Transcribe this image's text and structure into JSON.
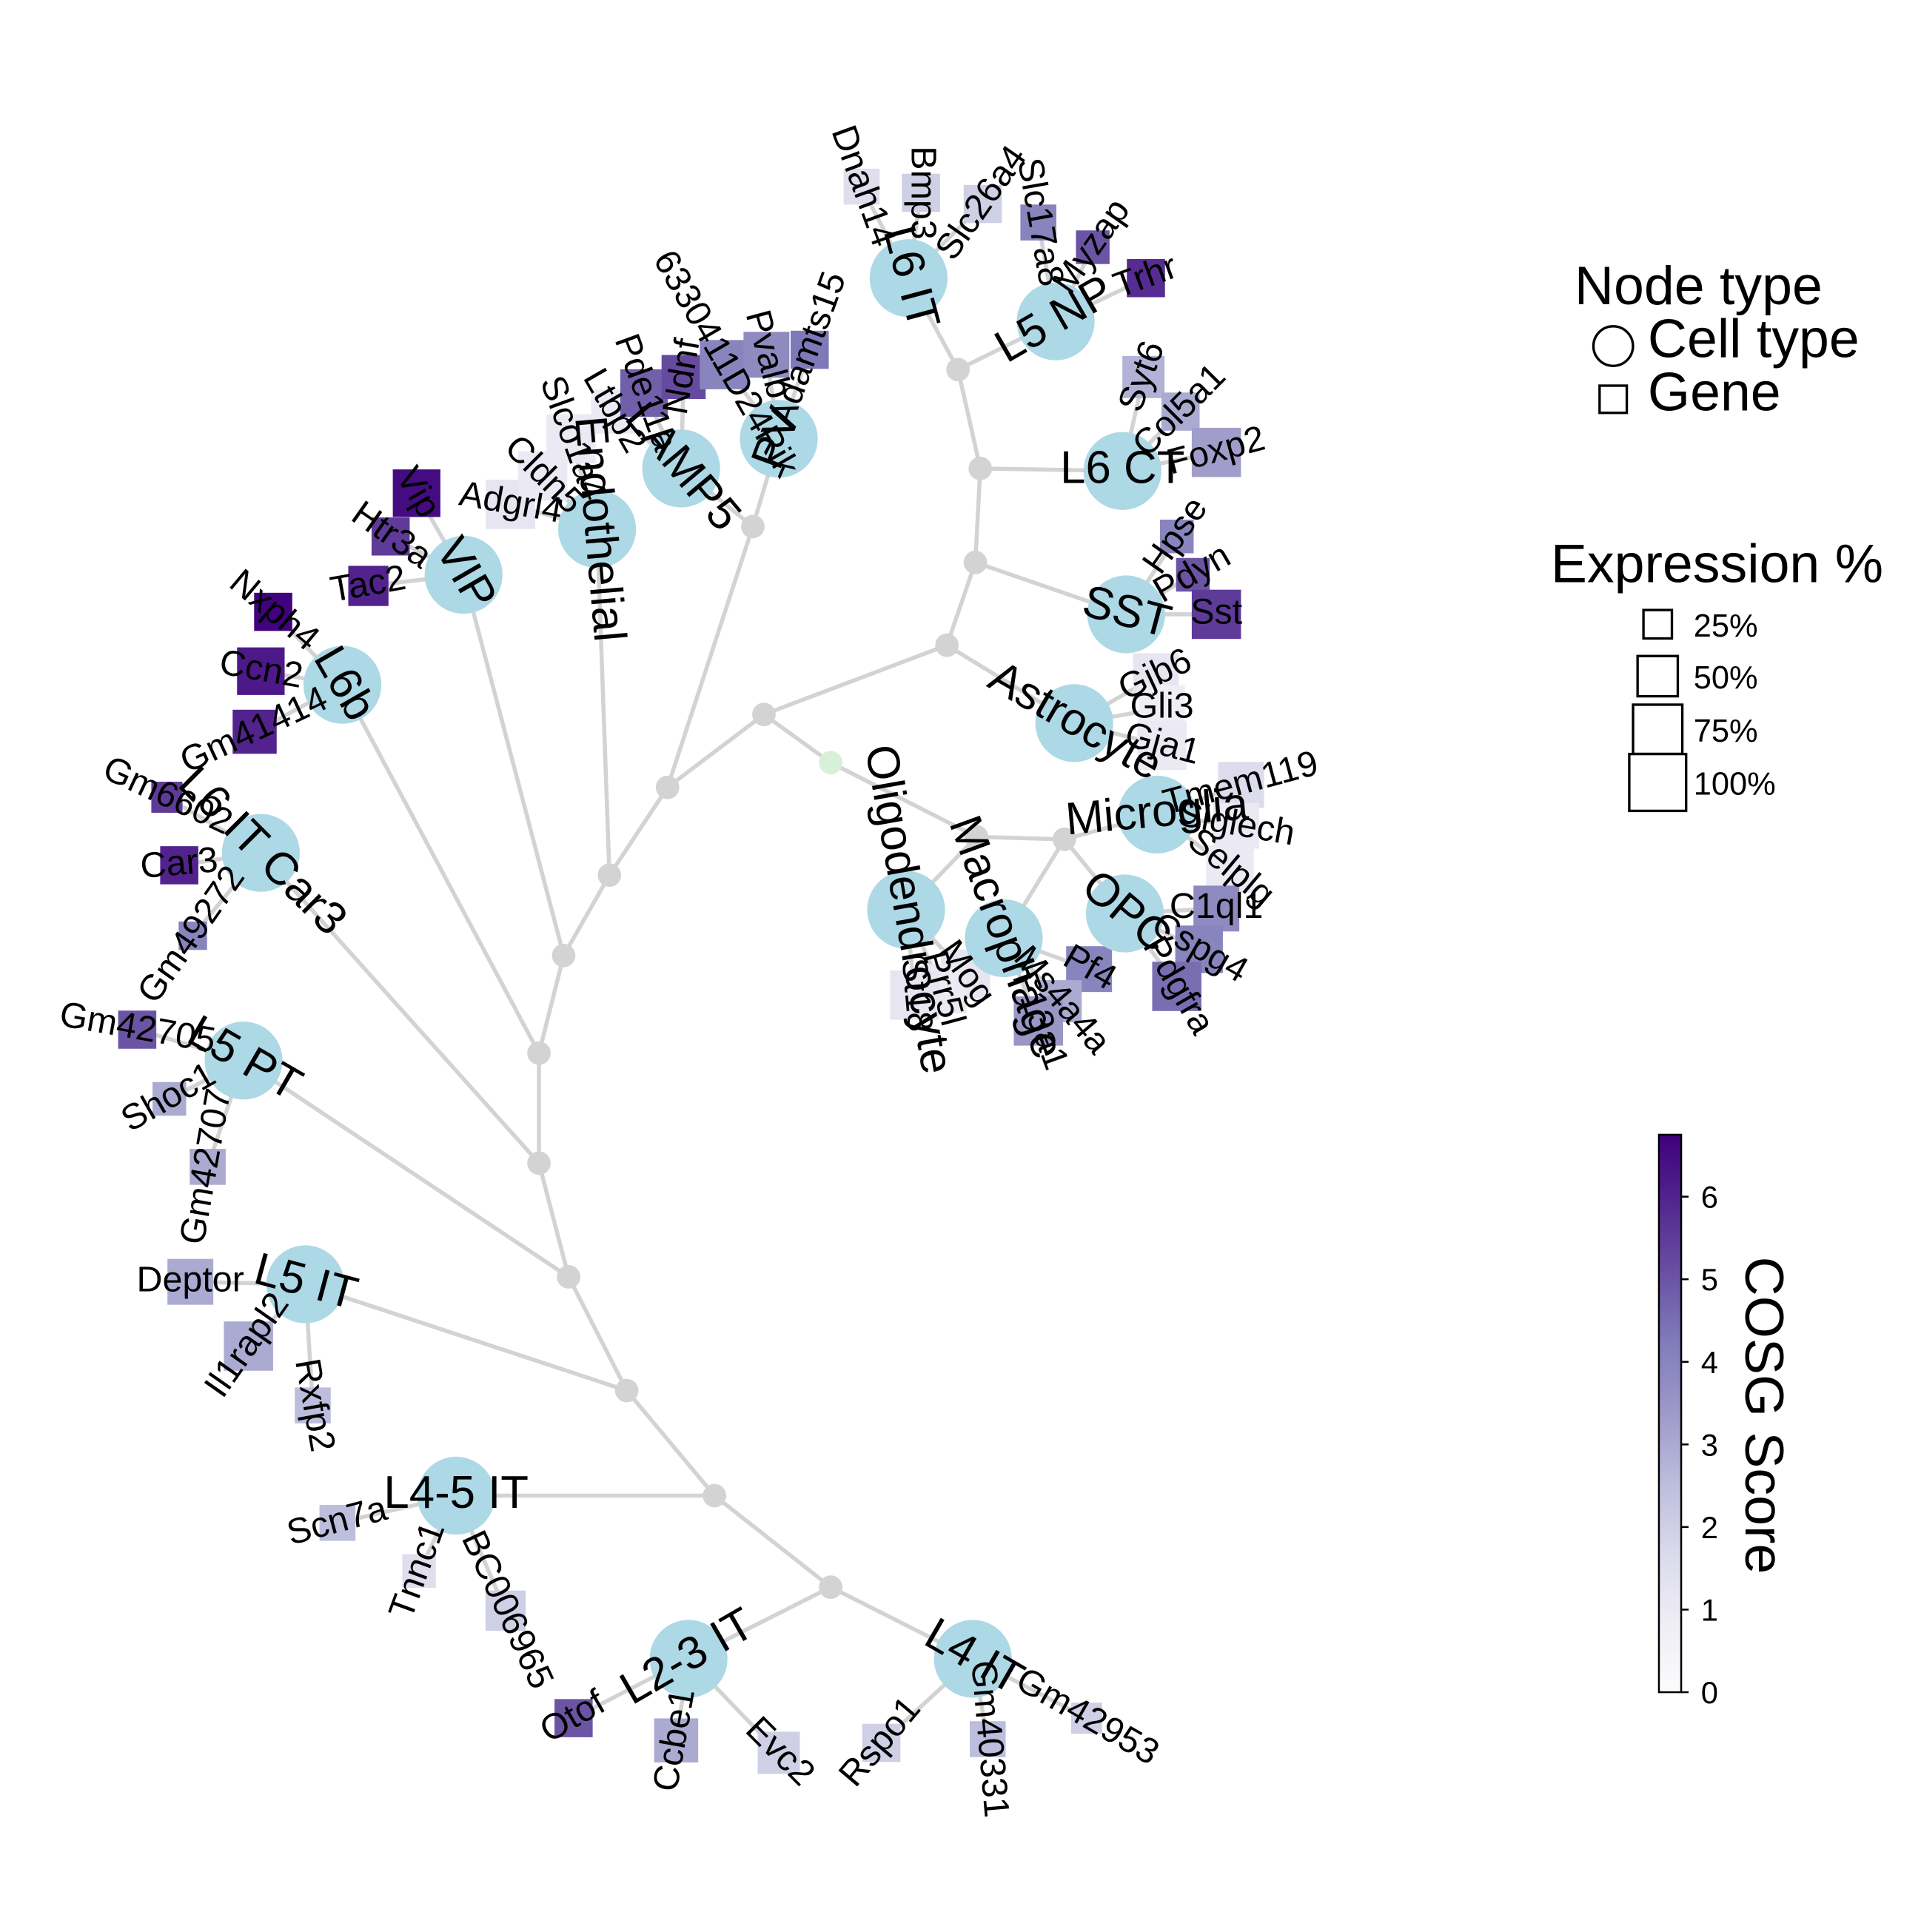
{
  "legend": {
    "node_type_title": "Node type",
    "node_types": [
      {
        "shape": "circle",
        "label": "Cell type"
      },
      {
        "shape": "square",
        "label": "Gene"
      }
    ],
    "expression_title": "Expression %",
    "expression_levels": [
      {
        "label": "25%",
        "value": 0.25
      },
      {
        "label": "50%",
        "value": 0.5
      },
      {
        "label": "75%",
        "value": 0.75
      },
      {
        "label": "100%",
        "value": 1.0
      }
    ]
  },
  "colorbar": {
    "label": "COSG Score",
    "min": 0,
    "max": 6.75,
    "ticks": [
      "0",
      "1",
      "2",
      "3",
      "4",
      "5",
      "6"
    ],
    "colors": [
      "#fcfbfd",
      "#efedf5",
      "#dadaeb",
      "#bcbddc",
      "#9e9ac8",
      "#807dba",
      "#6a51a3",
      "#54278f",
      "#3f007d"
    ]
  },
  "colors": {
    "cell_node": "#add8e6",
    "branch_node": "#d3d3d3",
    "root_node": "#d8f0d8",
    "edge": "#d3d3d3"
  },
  "cell_types": [
    {
      "name": "L6 IT",
      "genes": [
        {
          "name": "Dnah14",
          "score": 1.5,
          "expr": 0.4
        },
        {
          "name": "Bmp3",
          "score": 2.0,
          "expr": 0.45
        },
        {
          "name": "Slc26a4",
          "score": 2.0,
          "expr": 0.45
        }
      ]
    },
    {
      "name": "L5 NP",
      "genes": [
        {
          "name": "Slc17a8",
          "score": 4.0,
          "expr": 0.4
        },
        {
          "name": "Myzap",
          "score": 5.0,
          "expr": 0.35
        },
        {
          "name": "Trhr",
          "score": 5.8,
          "expr": 0.45
        }
      ]
    },
    {
      "name": "L6 CT",
      "genes": [
        {
          "name": "Syt6",
          "score": 2.8,
          "expr": 0.55
        },
        {
          "name": "Col5a1",
          "score": 3.0,
          "expr": 0.45
        },
        {
          "name": "Foxp2",
          "score": 3.3,
          "expr": 0.75
        }
      ]
    },
    {
      "name": "SST",
      "genes": [
        {
          "name": "Hpse",
          "score": 4.0,
          "expr": 0.35
        },
        {
          "name": "Pdyn",
          "score": 5.0,
          "expr": 0.35
        },
        {
          "name": "Sst",
          "score": 5.5,
          "expr": 0.75
        }
      ]
    },
    {
      "name": "Astrocyte",
      "genes": [
        {
          "name": "Gjb6",
          "score": 1.2,
          "expr": 0.65
        },
        {
          "name": "Gli3",
          "score": 0.8,
          "expr": 0.65
        },
        {
          "name": "Gja1",
          "score": 1.0,
          "expr": 0.75
        }
      ]
    },
    {
      "name": "Microglia",
      "genes": [
        {
          "name": "Tmem119",
          "score": 1.6,
          "expr": 0.65
        },
        {
          "name": "Siglech",
          "score": 1.0,
          "expr": 0.65
        },
        {
          "name": "Selplg",
          "score": 1.0,
          "expr": 0.7
        }
      ]
    },
    {
      "name": "OPC",
      "genes": [
        {
          "name": "C1ql1",
          "score": 3.8,
          "expr": 0.65
        },
        {
          "name": "Cspg4",
          "score": 4.0,
          "expr": 0.7
        },
        {
          "name": "Pdgfra",
          "score": 4.5,
          "expr": 0.75
        }
      ]
    },
    {
      "name": "Macrophage",
      "genes": [
        {
          "name": "Pf4",
          "score": 4.0,
          "expr": 0.65
        },
        {
          "name": "Ms4a4a",
          "score": 3.0,
          "expr": 0.55
        },
        {
          "name": "F13a1",
          "score": 3.5,
          "expr": 0.75
        }
      ]
    },
    {
      "name": "Oligodendrocyte",
      "genes": [
        {
          "name": "Mog",
          "score": 1.2,
          "expr": 0.75
        },
        {
          "name": "Prr5l",
          "score": 1.0,
          "expr": 0.75
        },
        {
          "name": "St18",
          "score": 1.2,
          "expr": 0.75
        }
      ]
    },
    {
      "name": "L4 IT",
      "genes": [
        {
          "name": "Gm42953",
          "score": 2.0,
          "expr": 0.3
        },
        {
          "name": "Gm40331",
          "score": 2.5,
          "expr": 0.4
        },
        {
          "name": "Rspo1",
          "score": 2.0,
          "expr": 0.45
        }
      ]
    },
    {
      "name": "L2-3 IT",
      "genes": [
        {
          "name": "Evc2",
          "score": 2.0,
          "expr": 0.55
        },
        {
          "name": "Ccbe1",
          "score": 3.0,
          "expr": 0.6
        },
        {
          "name": "Otof",
          "score": 5.0,
          "expr": 0.45
        }
      ]
    },
    {
      "name": "L4-5 IT",
      "genes": [
        {
          "name": "BC006965",
          "score": 2.0,
          "expr": 0.5
        },
        {
          "name": "Tnnc1",
          "score": 1.5,
          "expr": 0.35
        },
        {
          "name": "Scn7a",
          "score": 2.5,
          "expr": 0.4
        }
      ]
    },
    {
      "name": "L5 IT",
      "genes": [
        {
          "name": "Rxfp2",
          "score": 2.5,
          "expr": 0.4
        },
        {
          "name": "Il1rapl2",
          "score": 3.0,
          "expr": 0.75
        },
        {
          "name": "Deptor",
          "score": 3.0,
          "expr": 0.65
        }
      ]
    },
    {
      "name": "L5 PT",
      "genes": [
        {
          "name": "Gm42707",
          "score": 3.0,
          "expr": 0.4
        },
        {
          "name": "Shoc1",
          "score": 3.0,
          "expr": 0.35
        },
        {
          "name": "Gm42705",
          "score": 5.0,
          "expr": 0.45
        }
      ]
    },
    {
      "name": "L6 IT Car3",
      "genes": [
        {
          "name": "Gm49272",
          "score": 4.0,
          "expr": 0.25
        },
        {
          "name": "Car3",
          "score": 6.0,
          "expr": 0.45
        },
        {
          "name": "Gm6602",
          "score": 5.5,
          "expr": 0.3
        }
      ]
    },
    {
      "name": "L6b",
      "genes": [
        {
          "name": "Gm41414",
          "score": 6.0,
          "expr": 0.6
        },
        {
          "name": "Ccn2",
          "score": 6.2,
          "expr": 0.7
        },
        {
          "name": "Nxph4",
          "score": 6.7,
          "expr": 0.45
        }
      ]
    },
    {
      "name": "VIP",
      "genes": [
        {
          "name": "Tac2",
          "score": 6.0,
          "expr": 0.5
        },
        {
          "name": "Htr3a",
          "score": 5.5,
          "expr": 0.45
        },
        {
          "name": "Vip",
          "score": 6.5,
          "expr": 0.7
        }
      ]
    },
    {
      "name": "Endothelial",
      "genes": [
        {
          "name": "Adgrl4",
          "score": 1.2,
          "expr": 0.75
        },
        {
          "name": "Cldn5",
          "score": 1.0,
          "expr": 0.75
        },
        {
          "name": "Slco1a4",
          "score": 1.0,
          "expr": 0.75
        }
      ]
    },
    {
      "name": "LAMP5",
      "genes": [
        {
          "name": "Ltbp2",
          "score": 1.0,
          "expr": 0.6
        },
        {
          "name": "Pde11a",
          "score": 4.8,
          "expr": 0.7
        },
        {
          "name": "Ndnf",
          "score": 5.2,
          "expr": 0.6
        }
      ]
    },
    {
      "name": "PV",
      "genes": [
        {
          "name": "6330411D24Rik",
          "score": 4.0,
          "expr": 0.75
        },
        {
          "name": "Pvalb",
          "score": 3.8,
          "expr": 0.65
        },
        {
          "name": "Adamts15",
          "score": 4.3,
          "expr": 0.45
        }
      ]
    }
  ]
}
